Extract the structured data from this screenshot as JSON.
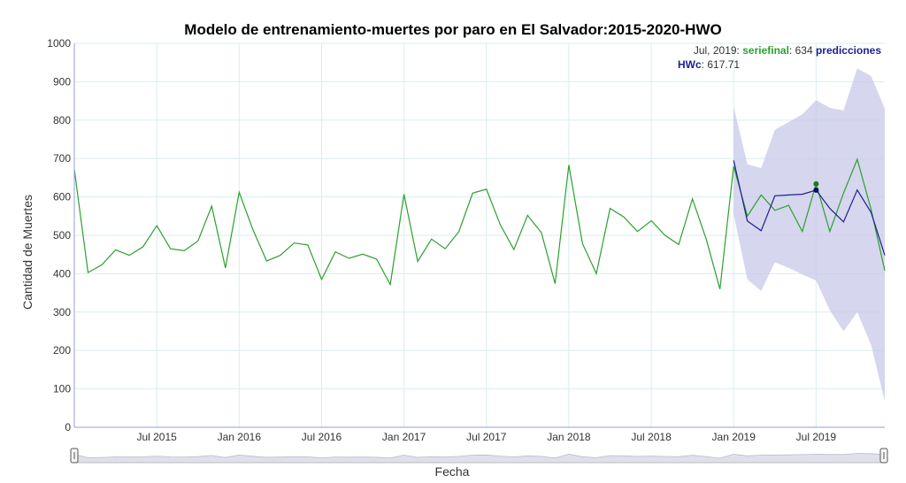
{
  "chart_data": {
    "type": "line",
    "title": "Modelo de entrenamiento-muertes por paro en El Salvador:2015-2020-HWO",
    "xlabel": "Fecha",
    "ylabel": "Cantidad de Muertes",
    "ylim": [
      0,
      1000
    ],
    "yticks": [
      "0",
      "100",
      "200",
      "300",
      "400",
      "500",
      "600",
      "700",
      "800",
      "900",
      "1000"
    ],
    "xticks": [
      {
        "label": "Jul 2015",
        "date": "2015-07"
      },
      {
        "label": "Jan 2016",
        "date": "2016-01"
      },
      {
        "label": "Jul 2016",
        "date": "2016-07"
      },
      {
        "label": "Jan 2017",
        "date": "2017-01"
      },
      {
        "label": "Jul 2017",
        "date": "2017-07"
      },
      {
        "label": "Jan 2018",
        "date": "2018-01"
      },
      {
        "label": "Jul 2018",
        "date": "2018-07"
      },
      {
        "label": "Jan 2019",
        "date": "2019-01"
      },
      {
        "label": "Jul 2019",
        "date": "2019-07"
      }
    ],
    "xrange": [
      "2015-01",
      "2019-12"
    ],
    "grid": true,
    "colors": {
      "serie": "#2ca02c",
      "pred": "#1f1f8f",
      "band": "#c8c8e8",
      "grid": "#d9eef0",
      "axis": "#9999dd"
    },
    "series": [
      {
        "key": "seriefinal",
        "x": [
          "2015-01",
          "2015-02",
          "2015-03",
          "2015-04",
          "2015-05",
          "2015-06",
          "2015-07",
          "2015-08",
          "2015-09",
          "2015-10",
          "2015-11",
          "2015-12",
          "2016-01",
          "2016-02",
          "2016-03",
          "2016-04",
          "2016-05",
          "2016-06",
          "2016-07",
          "2016-08",
          "2016-09",
          "2016-10",
          "2016-11",
          "2016-12",
          "2017-01",
          "2017-02",
          "2017-03",
          "2017-04",
          "2017-05",
          "2017-06",
          "2017-07",
          "2017-08",
          "2017-09",
          "2017-10",
          "2017-11",
          "2017-12",
          "2018-01",
          "2018-02",
          "2018-03",
          "2018-04",
          "2018-05",
          "2018-06",
          "2018-07",
          "2018-08",
          "2018-09",
          "2018-10",
          "2018-11",
          "2018-12",
          "2019-01",
          "2019-02",
          "2019-03",
          "2019-04",
          "2019-05",
          "2019-06",
          "2019-07",
          "2019-08",
          "2019-09",
          "2019-10",
          "2019-11",
          "2019-12"
        ],
        "values": [
          672,
          403,
          423,
          462,
          448,
          470,
          525,
          465,
          460,
          485,
          576,
          415,
          612,
          515,
          433,
          448,
          480,
          475,
          385,
          457,
          440,
          451,
          438,
          372,
          607,
          432,
          490,
          465,
          510,
          610,
          620,
          528,
          463,
          552,
          507,
          374,
          683,
          478,
          400,
          570,
          548,
          510,
          538,
          500,
          476,
          595,
          490,
          360,
          680,
          550,
          605,
          565,
          578,
          510,
          634,
          510,
          610,
          698,
          568,
          408
        ]
      },
      {
        "key": "predicciones HWc",
        "x": [
          "2019-01",
          "2019-02",
          "2019-03",
          "2019-04",
          "2019-05",
          "2019-06",
          "2019-07",
          "2019-08",
          "2019-09",
          "2019-10",
          "2019-11",
          "2019-12"
        ],
        "values": [
          695,
          537,
          512,
          603,
          605,
          607,
          617.71,
          570,
          535,
          618,
          560,
          448
        ],
        "upper": [
          835,
          685,
          675,
          775,
          795,
          815,
          852,
          832,
          825,
          935,
          915,
          830
        ],
        "lower": [
          555,
          385,
          355,
          430,
          415,
          398,
          382,
          305,
          250,
          300,
          215,
          68
        ]
      }
    ],
    "hover": {
      "date_label": "Jul, 2019",
      "serie_name": "seriefinal",
      "serie_value": "634",
      "pred_name_line1": "predicciones",
      "pred_name_line2": "HWc",
      "pred_value": "617.71",
      "serie_date": "2019-07",
      "serie_y": 634,
      "pred_y": 617.71
    }
  }
}
